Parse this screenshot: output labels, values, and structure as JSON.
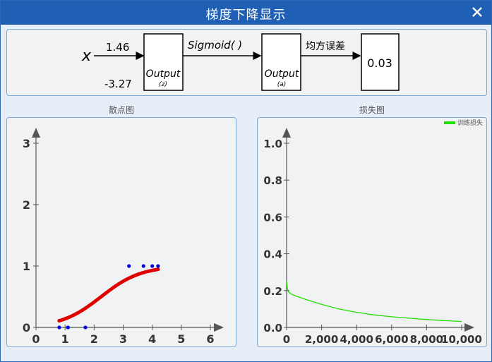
{
  "window": {
    "title": "梯度下降显示",
    "close_icon": "close-icon"
  },
  "network": {
    "input_symbol": "x",
    "weight": "1.46",
    "bias": "-3.27",
    "box1_title": "Output",
    "box1_sub": "(z)",
    "activation": "Sigmoid(      )",
    "box2_title": "Output",
    "box2_sub": "(a)",
    "loss_label": "均方误差",
    "loss_value": "0.03"
  },
  "scatter_chart_label": "散点图",
  "loss_chart_label": "损失图",
  "chart_data": [
    {
      "type": "scatter",
      "title": "散点图",
      "xlim": [
        0,
        6
      ],
      "ylim": [
        0,
        3
      ],
      "x_ticks": [
        "0",
        "1",
        "2",
        "3",
        "4",
        "5",
        "6"
      ],
      "y_ticks": [
        "0",
        "1",
        "2",
        "3"
      ],
      "points": [
        {
          "x": 0.8,
          "y": 0
        },
        {
          "x": 1.1,
          "y": 0
        },
        {
          "x": 1.7,
          "y": 0
        },
        {
          "x": 3.2,
          "y": 1
        },
        {
          "x": 3.7,
          "y": 1
        },
        {
          "x": 4.0,
          "y": 1
        },
        {
          "x": 4.2,
          "y": 1
        }
      ],
      "point_color": "#0000dd",
      "fit_curve": {
        "weight": 1.46,
        "bias": -3.27,
        "x_range": [
          0.8,
          4.2
        ],
        "color": "#e00000"
      }
    },
    {
      "type": "line",
      "title": "损失图",
      "xlim": [
        0,
        10000
      ],
      "ylim": [
        0,
        1.0
      ],
      "x_ticks": [
        "0",
        "2,000",
        "4,000",
        "6,000",
        "8,000",
        "10,000"
      ],
      "y_ticks": [
        "0.0",
        "0.2",
        "0.4",
        "0.6",
        "0.8",
        "1.0"
      ],
      "series": [
        {
          "name": "训练损失",
          "color": "#22dd00",
          "x": [
            0,
            50,
            100,
            200,
            400,
            700,
            1000,
            1500,
            2000,
            3000,
            4000,
            5000,
            6000,
            7000,
            8000,
            9000,
            10000
          ],
          "values": [
            0.25,
            0.21,
            0.195,
            0.185,
            0.175,
            0.165,
            0.155,
            0.14,
            0.125,
            0.1,
            0.082,
            0.068,
            0.058,
            0.05,
            0.043,
            0.037,
            0.032
          ]
        }
      ],
      "legend": "top-right"
    }
  ]
}
